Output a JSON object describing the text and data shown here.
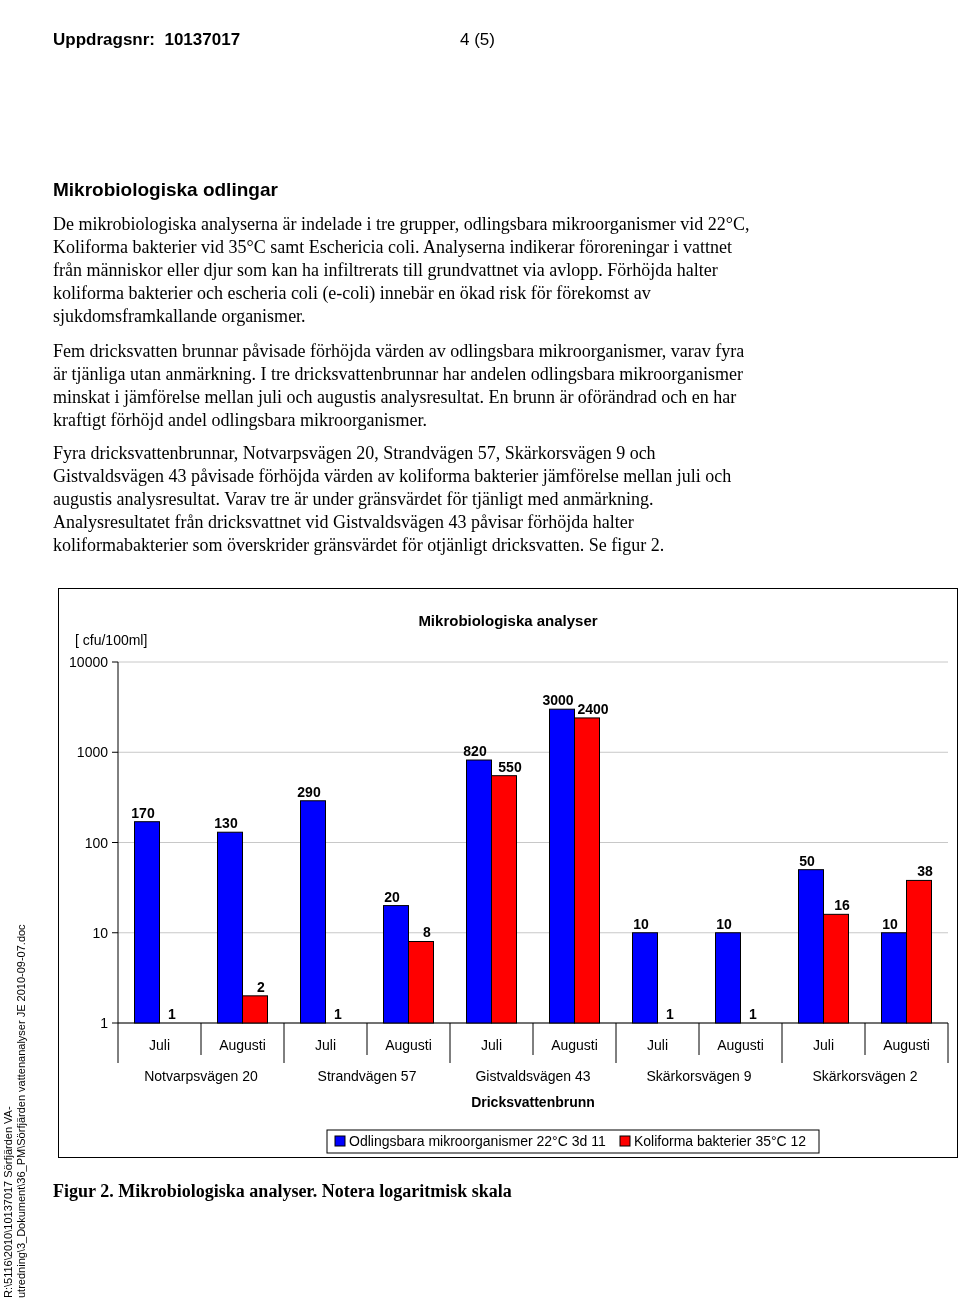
{
  "chart_data": {
    "type": "bar",
    "title": "Mikrobiologiska analyser",
    "ylabel": "[ cfu/100ml]",
    "xlabel": "Dricksvattenbrunn",
    "categories": [
      "Juli",
      "Augusti",
      "Juli",
      "Augusti",
      "Juli",
      "Augusti",
      "Juli",
      "Augusti",
      "Juli",
      "Augusti"
    ],
    "series": [
      {
        "name": "Odlingsbara mikroorganismer 22°C 3d 11",
        "color": "#0000ff",
        "values": [
          170,
          130,
          290,
          20,
          820,
          3000,
          10,
          10,
          50,
          10
        ]
      },
      {
        "name": "Koliforma bakterier 35°C 12",
        "color": "#ff0000",
        "values": [
          1,
          2,
          1,
          8,
          550,
          2400,
          1,
          1,
          16,
          38
        ]
      }
    ],
    "log": "y",
    "ylim": [
      1,
      10000
    ],
    "yticks": [
      1,
      10,
      100,
      1000,
      10000
    ],
    "grid": "y",
    "legend": "bottom",
    "data_labels": true,
    "annotations": [
      "Notvarpsvägen 20",
      "Strandvägen 57",
      "Gistvaldsvägen 43",
      "Skärkorsvägen 9",
      "Skärkorsvägen 2",
      "Uppdragsnr:  10137017",
      "4 (5)",
      "Mikrobiologiska odlingar",
      "De mikrobiologiska analyserna är indelade i tre grupper, odlingsbara mikroorganismer vid 22°C, Koliforma bakterier vid 35°C samt Eschericia coli. Analyserna indikerar föroreningar i vattnet från människor eller djur som kan ha infiltrerats till grundvattnet via avlopp. Förhöjda halter koliforma bakterier och escheria coli (e-coli) innebär en ökad risk för förekomst av sjukdomsframkallande organismer.",
      "Fem dricksvatten brunnar påvisade förhöjda värden av odlingsbara mikroorganismer, varav fyra är tjänliga utan anmärkning. I tre dricksvattenbrunnar har andelen odlingsbara mikroorganismer minskat i jämförelse mellan juli och augustis analysresultat. En brunn är oförändrad och en har kraftigt förhöjd andel odlingsbara mikroorganismer.",
      "Fyra dricksvattenbrunnar, Notvarpsvägen 20, Strandvägen 57, Skärkorsvägen 9 och Gistvaldsvägen 43 påvisade förhöjda värden av koliforma bakterier jämförelse mellan juli och augustis analysresultat. Varav tre är under gränsvärdet för tjänligt med anmärkning. Analysresultatet från dricksvattnet vid Gistvaldsvägen 43 påvisar förhöjda halter koliformabakterier som överskrider gränsvärdet för otjänligt dricksvatten. Se figur 2.",
      "Figur 2. Mikrobiologiska analyser. Notera logaritmisk skala",
      "R:\\5116\\2010\\10137017 Sörfjärden VA-utredning\\3_Dokument\\36_PM\\Sörfjärden vattenanalyser JE 2010-09-07.doc"
    ]
  }
}
